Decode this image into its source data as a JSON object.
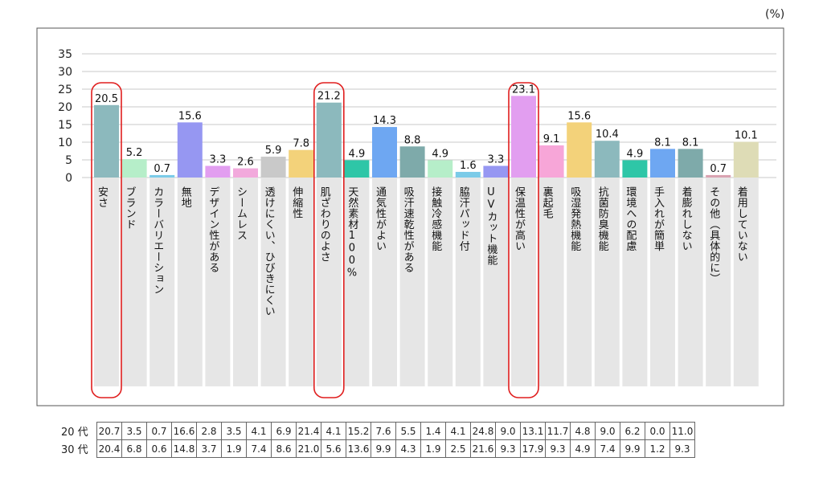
{
  "unit": "(%)",
  "chart_data": {
    "type": "bar",
    "ylim": [
      0,
      35
    ],
    "yticks": [
      0,
      5,
      10,
      15,
      20,
      25,
      30,
      35
    ],
    "grid": true,
    "categories": [
      "安さ",
      "ブランド",
      "カラーバリエーション",
      "無地",
      "デザイン性がある",
      "シームレス",
      "透けにくい、ひびきにくい",
      "伸縮性",
      "肌ざわりのよさ",
      "天然素材100%",
      "通気性がよい",
      "吸汗速乾性がある",
      "接触冷感機能",
      "脇汗パッド付",
      "UVカット機能",
      "保温性が高い",
      "裏起毛",
      "吸湿発熱機能",
      "抗菌防臭機能",
      "環境への配慮",
      "手入れが簡単",
      "着膨れしない",
      "その他（具体的に）",
      "着用していない"
    ],
    "values": [
      20.5,
      5.2,
      0.7,
      15.6,
      3.3,
      2.6,
      5.9,
      7.8,
      21.2,
      4.9,
      14.3,
      8.8,
      4.9,
      1.6,
      3.3,
      23.1,
      9.1,
      15.6,
      10.4,
      4.9,
      8.1,
      8.1,
      0.7,
      10.1
    ],
    "colors": [
      "#8cb9bd",
      "#b6eec9",
      "#7bcbe8",
      "#9697f2",
      "#e29ef0",
      "#f2a9dc",
      "#c9c9c9",
      "#f3d27a",
      "#8cb9bd",
      "#2ec6a7",
      "#6ea7f2",
      "#7eaaaa",
      "#b6eec9",
      "#7bcbe8",
      "#9697f2",
      "#e29ef0",
      "#f7a6d8",
      "#f3d27a",
      "#8cb9bd",
      "#2ec6a7",
      "#6ea7f2",
      "#7eaaaa",
      "#d9a3b1",
      "#dedcb6"
    ],
    "highlight_color": "#e01e1e",
    "highlighted": [
      "安さ",
      "肌ざわりのよさ",
      "保温性が高い"
    ]
  },
  "table": {
    "rows": [
      {
        "label": "20 代",
        "values": [
          "20.7",
          "3.5",
          "0.7",
          "16.6",
          "2.8",
          "3.5",
          "4.1",
          "6.9",
          "21.4",
          "4.1",
          "15.2",
          "7.6",
          "5.5",
          "1.4",
          "4.1",
          "24.8",
          "9.0",
          "13.1",
          "11.7",
          "4.8",
          "9.0",
          "6.2",
          "0.0",
          "11.0"
        ]
      },
      {
        "label": "30 代",
        "values": [
          "20.4",
          "6.8",
          "0.6",
          "14.8",
          "3.7",
          "1.9",
          "7.4",
          "8.6",
          "21.0",
          "5.6",
          "13.6",
          "9.9",
          "4.3",
          "1.9",
          "2.5",
          "21.6",
          "9.3",
          "17.9",
          "9.3",
          "4.9",
          "7.4",
          "9.9",
          "1.2",
          "9.3"
        ]
      }
    ]
  }
}
